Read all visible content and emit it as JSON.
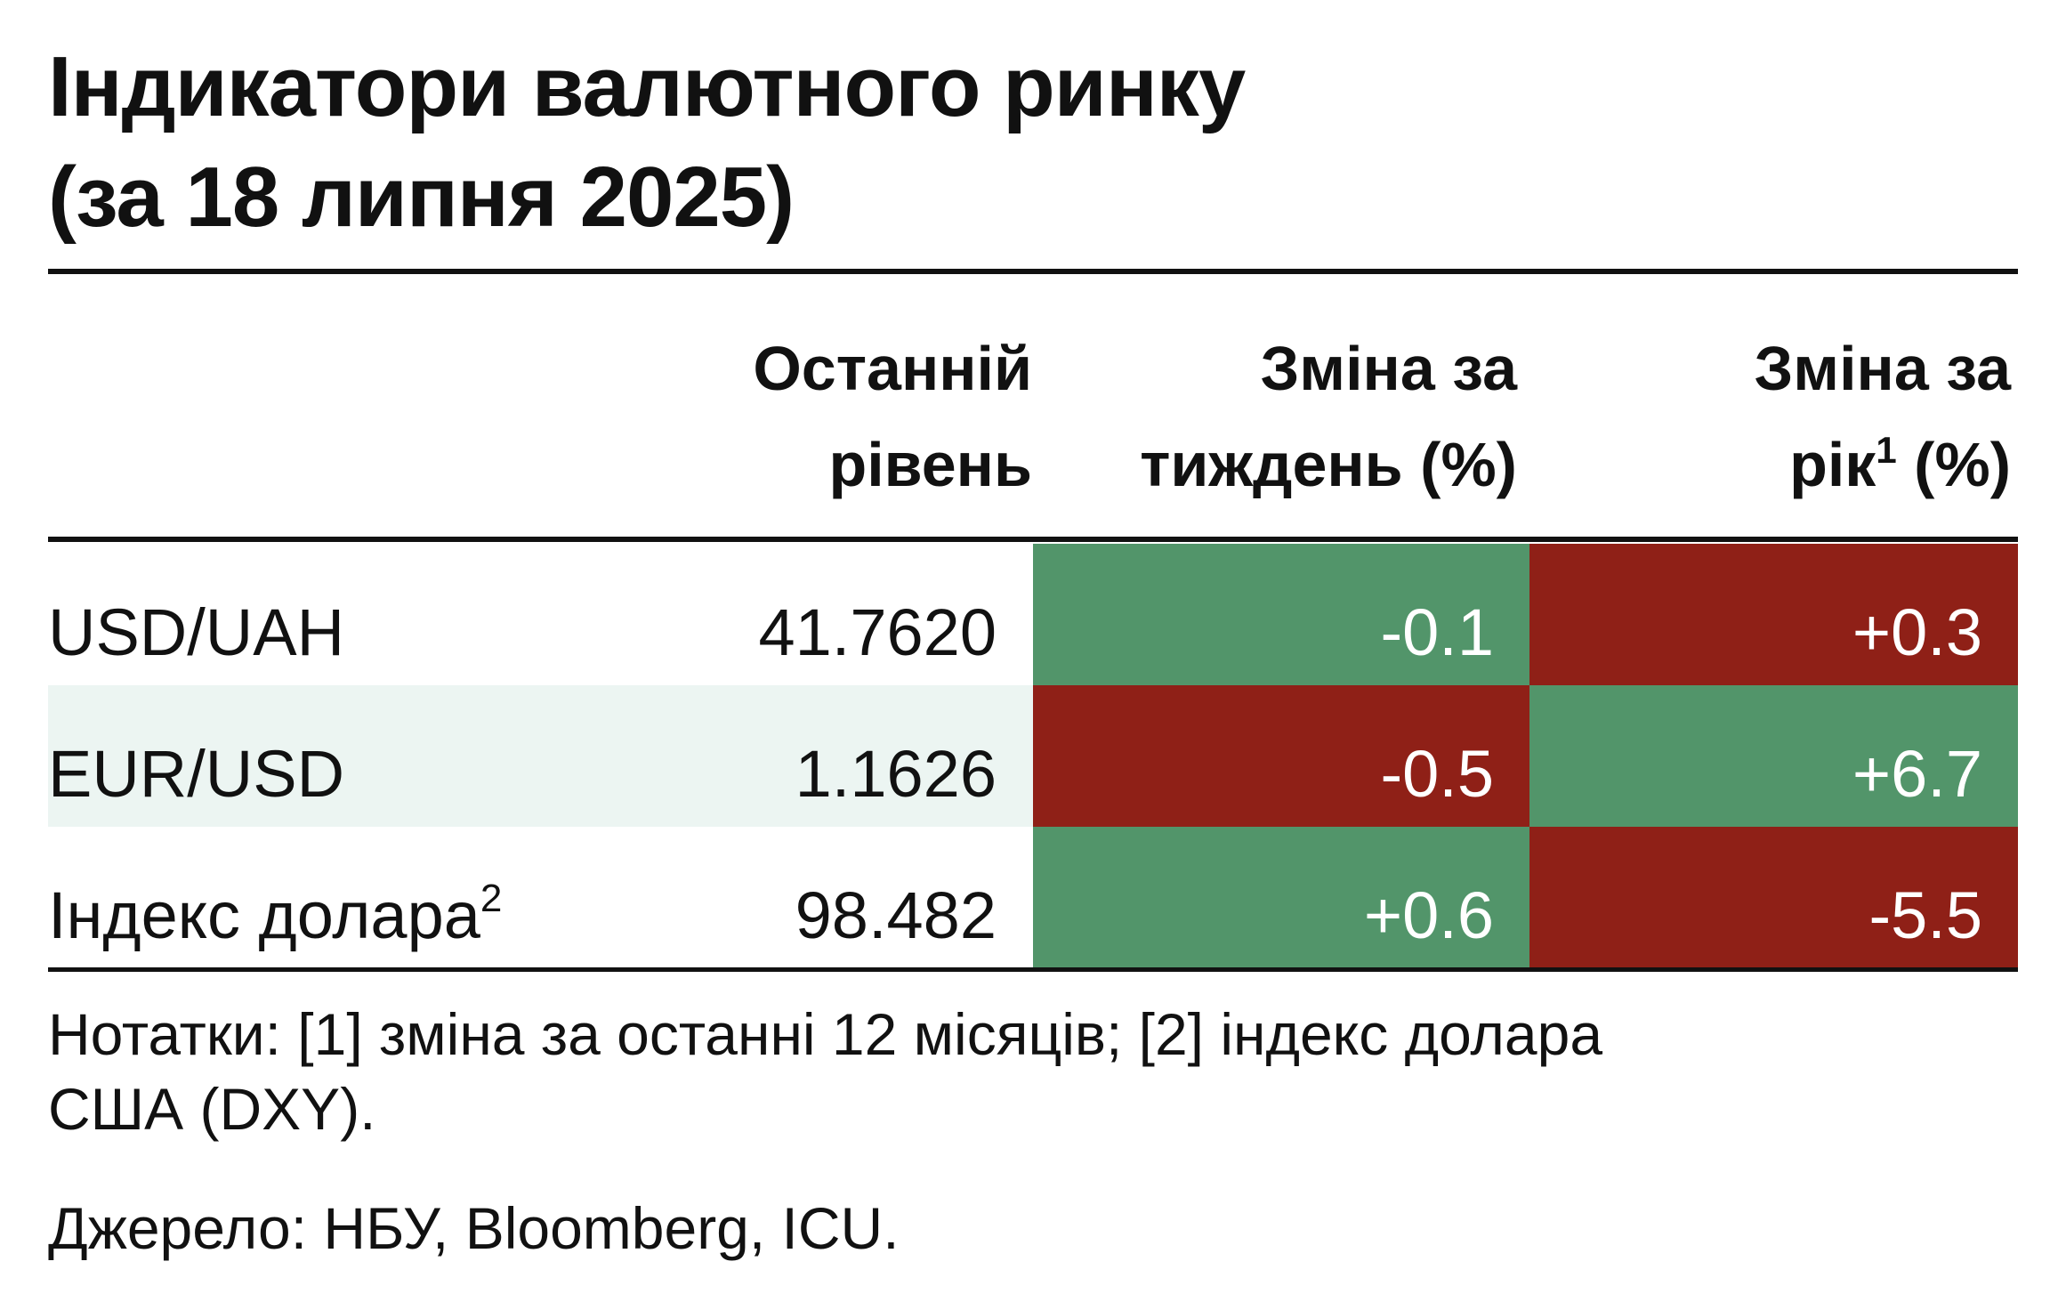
{
  "title": {
    "line1": "Індикатори валютного ринку",
    "line2": "(за 18 липня 2025)"
  },
  "columns": {
    "level": {
      "line1": "Останній",
      "line2": "рівень"
    },
    "week": {
      "line1": "Зміна за",
      "line2": "тиждень (%)"
    },
    "year": {
      "line1": "Зміна за",
      "line2_pre": "рік",
      "line2_sup": "1",
      "line2_post": " (%)"
    }
  },
  "colors": {
    "positive_cell": "#52956a",
    "negative_cell": "#8f2017",
    "row_stripe": "#ecf5f2",
    "text": "#111111"
  },
  "chart_data": {
    "type": "table",
    "title": "Індикатори валютного ринку (за 18 липня 2025)",
    "columns": [
      "Останній рівень",
      "Зміна за тиждень (%)",
      "Зміна за рік (%)"
    ],
    "rows": [
      {
        "label": "USD/UAH",
        "label_sup": "",
        "level": "41.7620",
        "week": "-0.1",
        "week_color": "positive",
        "year": "+0.3",
        "year_color": "negative"
      },
      {
        "label": "EUR/USD",
        "label_sup": "",
        "level": "1.1626",
        "week": "-0.5",
        "week_color": "negative",
        "year": "+6.7",
        "year_color": "positive"
      },
      {
        "label": "Індекс долара",
        "label_sup": "2",
        "level": "98.482",
        "week": "+0.6",
        "week_color": "positive",
        "year": "-5.5",
        "year_color": "negative"
      }
    ]
  },
  "notes": {
    "line1": "Нотатки: [1] зміна за останні 12 місяців; [2] індекс долара",
    "line2": "США (DXY).",
    "source": "Джерело: НБУ, Bloomberg, ICU."
  }
}
